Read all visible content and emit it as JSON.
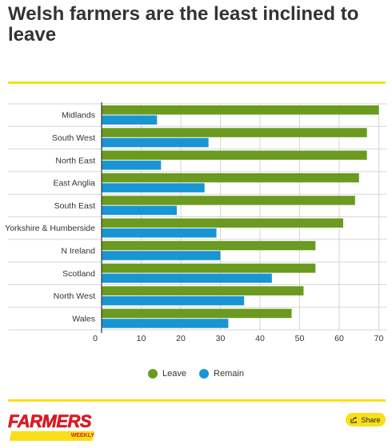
{
  "title": "Welsh farmers are the least inclined to leave",
  "legend": [
    {
      "label": "Leave",
      "color": "#6a9a1f"
    },
    {
      "label": "Remain",
      "color": "#1a95d3"
    }
  ],
  "chart_data": {
    "type": "bar",
    "orientation": "horizontal",
    "categories": [
      "Midlands",
      "South West",
      "North East",
      "East Anglia",
      "South East",
      "Yorkshire & Humberside",
      "N Ireland",
      "Scotland",
      "North West",
      "Wales"
    ],
    "series": [
      {
        "name": "Leave",
        "color": "#6a9a1f",
        "values": [
          70,
          67,
          67,
          65,
          64,
          61,
          54,
          54,
          51,
          48
        ]
      },
      {
        "name": "Remain",
        "color": "#1a95d3",
        "values": [
          14,
          27,
          15,
          26,
          19,
          29,
          30,
          43,
          36,
          32
        ]
      }
    ],
    "xlim": [
      0,
      70
    ],
    "xticks": [
      0,
      10,
      20,
      30,
      40,
      50,
      60,
      70
    ],
    "grid": true,
    "legend_position": "bottom"
  },
  "footer": {
    "logo_text": "FARMERS",
    "logo_subtext": "WEEKLY",
    "share_label": "Share",
    "share_icon": "share-icon"
  }
}
